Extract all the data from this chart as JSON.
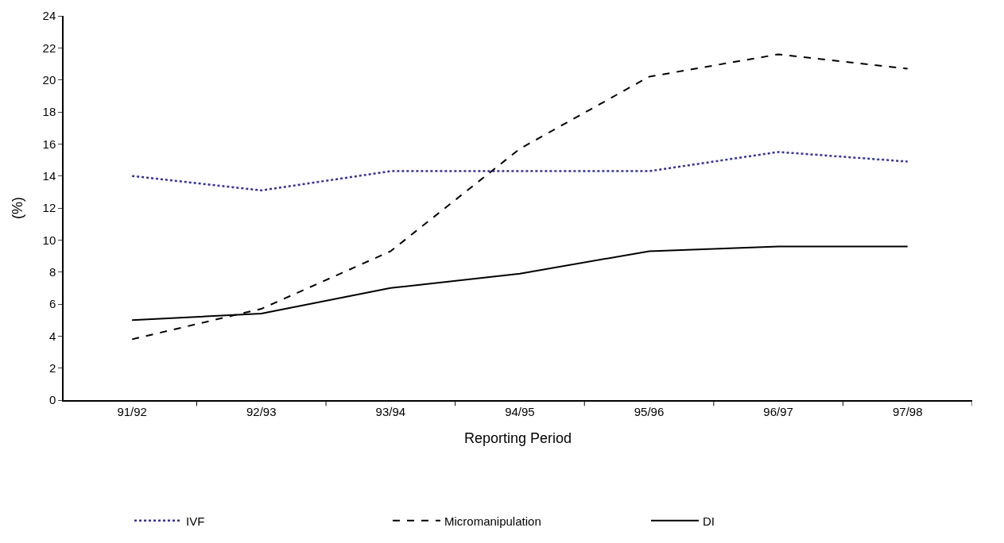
{
  "chart_data": {
    "type": "line",
    "xlabel": "Reporting Period",
    "ylabel": "(%)",
    "categories": [
      "91/92",
      "92/93",
      "93/94",
      "94/95",
      "95/96",
      "96/97",
      "97/98"
    ],
    "series": [
      {
        "name": "IVF",
        "color": "#333399",
        "line_style": "dotted",
        "values": [
          14.0,
          13.1,
          14.3,
          14.3,
          14.3,
          15.5,
          14.9
        ]
      },
      {
        "name": "Micromanipulation",
        "color": "#000000",
        "line_style": "dashed",
        "values": [
          3.8,
          5.7,
          9.3,
          15.7,
          20.2,
          21.6,
          20.7
        ]
      },
      {
        "name": "DI",
        "color": "#000000",
        "line_style": "solid",
        "values": [
          5.0,
          5.4,
          7.0,
          7.9,
          9.3,
          9.6,
          9.6
        ]
      }
    ],
    "ylim": [
      0,
      24
    ],
    "yticks": [
      0,
      2,
      4,
      6,
      8,
      10,
      12,
      14,
      16,
      18,
      20,
      22,
      24
    ],
    "grid": false,
    "legend": "bottom",
    "marker": "none"
  }
}
